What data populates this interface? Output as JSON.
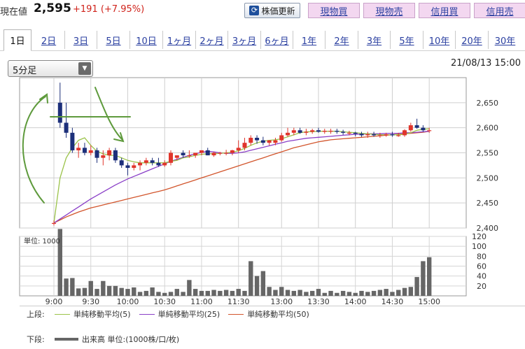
{
  "header": {
    "price_label": "現在値",
    "price_value": "2,595",
    "price_change": "+191 (+7.95%)",
    "update_button": "株価更新",
    "trade_buttons": [
      "現物買",
      "現物売",
      "信用買",
      "信用売"
    ]
  },
  "tabs": [
    "1日",
    "2日",
    "3日",
    "5日",
    "10日",
    "1ヶ月",
    "2ヶ月",
    "3ヶ月",
    "6ヶ月",
    "1年",
    "2年",
    "3年",
    "5年",
    "10年",
    "20年",
    "30年"
  ],
  "active_tab": "1日",
  "interval_select": {
    "value": "5分足"
  },
  "datetime": "21/08/13 15:00",
  "legend": {
    "upper_label": "上段:",
    "lower_label": "下段:",
    "ma5": "単純移動平均(5)",
    "ma25": "単純移動平均(25)",
    "ma50": "単純移動平均(50)",
    "volume": "出来高 単位:(1000株/口/枚)"
  },
  "colors": {
    "up": "#e0352b",
    "down": "#1c2f7a",
    "ma5": "#9bc34a",
    "ma25": "#8a3fc7",
    "ma50": "#d2552c",
    "volume": "#666666",
    "annotation": "#5e9a3c"
  },
  "chart_data": [
    {
      "type": "candlestick",
      "interval": "5分足",
      "x": [
        "9:00",
        "9:05",
        "9:10",
        "9:15",
        "9:20",
        "9:25",
        "9:30",
        "9:35",
        "9:40",
        "9:45",
        "9:50",
        "9:55",
        "10:00",
        "10:05",
        "10:10",
        "10:15",
        "10:20",
        "10:25",
        "10:30",
        "10:35",
        "10:40",
        "10:45",
        "10:50",
        "10:55",
        "11:00",
        "11:05",
        "11:10",
        "11:15",
        "11:20",
        "11:25",
        "11:30",
        "12:30",
        "12:35",
        "12:40",
        "12:45",
        "12:50",
        "12:55",
        "13:00",
        "13:05",
        "13:10",
        "13:15",
        "13:20",
        "13:25",
        "13:30",
        "13:35",
        "13:40",
        "13:45",
        "13:50",
        "13:55",
        "14:00",
        "14:05",
        "14:10",
        "14:15",
        "14:20",
        "14:25",
        "14:30",
        "14:35",
        "14:40",
        "14:45",
        "14:50",
        "14:55",
        "15:00"
      ],
      "open": [
        2410,
        2650,
        2610,
        2590,
        2555,
        2560,
        2550,
        2555,
        2540,
        2545,
        2555,
        2535,
        2525,
        2520,
        2525,
        2530,
        2535,
        2530,
        2525,
        2530,
        2540,
        2550,
        2545,
        2545,
        2550,
        2555,
        2545,
        2550,
        2550,
        2550,
        2555,
        2560,
        2570,
        2580,
        2575,
        2570,
        2570,
        2575,
        2585,
        2590,
        2595,
        2590,
        2592,
        2595,
        2592,
        2594,
        2594,
        2592,
        2590,
        2590,
        2588,
        2585,
        2587,
        2585,
        2585,
        2587,
        2585,
        2585,
        2595,
        2605,
        2600,
        2595
      ],
      "high": [
        2415,
        2690,
        2650,
        2600,
        2570,
        2570,
        2565,
        2560,
        2555,
        2560,
        2560,
        2540,
        2530,
        2530,
        2535,
        2540,
        2540,
        2540,
        2535,
        2555,
        2545,
        2555,
        2555,
        2550,
        2555,
        2560,
        2552,
        2552,
        2556,
        2556,
        2575,
        2580,
        2585,
        2585,
        2582,
        2575,
        2580,
        2590,
        2600,
        2600,
        2600,
        2598,
        2598,
        2600,
        2598,
        2598,
        2598,
        2596,
        2594,
        2592,
        2592,
        2592,
        2592,
        2590,
        2590,
        2592,
        2590,
        2597,
        2610,
        2618,
        2605,
        2600
      ],
      "low": [
        2405,
        2600,
        2580,
        2550,
        2540,
        2545,
        2545,
        2530,
        2525,
        2535,
        2530,
        2520,
        2505,
        2515,
        2515,
        2525,
        2525,
        2522,
        2522,
        2525,
        2535,
        2540,
        2540,
        2540,
        2545,
        2545,
        2542,
        2545,
        2545,
        2545,
        2550,
        2555,
        2565,
        2568,
        2565,
        2565,
        2565,
        2572,
        2582,
        2585,
        2588,
        2585,
        2588,
        2590,
        2588,
        2588,
        2588,
        2586,
        2585,
        2583,
        2582,
        2580,
        2582,
        2580,
        2582,
        2582,
        2582,
        2582,
        2592,
        2598,
        2592,
        2590
      ],
      "close": [
        2410,
        2610,
        2590,
        2555,
        2560,
        2550,
        2555,
        2540,
        2545,
        2555,
        2535,
        2525,
        2520,
        2525,
        2530,
        2535,
        2530,
        2525,
        2530,
        2550,
        2545,
        2545,
        2545,
        2550,
        2555,
        2545,
        2550,
        2550,
        2550,
        2555,
        2560,
        2570,
        2580,
        2575,
        2570,
        2575,
        2575,
        2585,
        2590,
        2595,
        2590,
        2592,
        2595,
        2592,
        2594,
        2594,
        2592,
        2590,
        2590,
        2588,
        2585,
        2587,
        2585,
        2585,
        2587,
        2585,
        2585,
        2595,
        2605,
        2600,
        2595,
        2595
      ],
      "ma5": [
        2410,
        2500,
        2540,
        2560,
        2575,
        2580,
        2565,
        2553,
        2548,
        2545,
        2545,
        2540,
        2535,
        2532,
        2530,
        2530,
        2530,
        2530,
        2530,
        2533,
        2535,
        2540,
        2542,
        2545,
        2547,
        2548,
        2548,
        2549,
        2550,
        2551,
        2554,
        2559,
        2565,
        2570,
        2573,
        2575,
        2576,
        2578,
        2582,
        2586,
        2590,
        2592,
        2592,
        2593,
        2593,
        2593,
        2593,
        2592,
        2591,
        2590,
        2589,
        2588,
        2587,
        2586,
        2586,
        2586,
        2586,
        2587,
        2590,
        2595,
        2597,
        2598
      ],
      "ma25": [
        2410,
        2418,
        2426,
        2434,
        2442,
        2450,
        2458,
        2465,
        2472,
        2479,
        2486,
        2492,
        2498,
        2503,
        2508,
        2513,
        2518,
        2523,
        2528,
        2533,
        2537,
        2541,
        2545,
        2548,
        2551,
        2553,
        2552,
        2550,
        2549,
        2549,
        2550,
        2552,
        2555,
        2558,
        2561,
        2564,
        2567,
        2570,
        2573,
        2575,
        2577,
        2579,
        2580,
        2581,
        2582,
        2583,
        2584,
        2585,
        2586,
        2587,
        2587,
        2588,
        2588,
        2588,
        2589,
        2589,
        2589,
        2590,
        2590,
        2591,
        2592,
        2593
      ],
      "ma50": [
        2410,
        2416,
        2422,
        2427,
        2432,
        2436,
        2440,
        2443,
        2446,
        2449,
        2452,
        2455,
        2458,
        2461,
        2464,
        2467,
        2470,
        2473,
        2476,
        2480,
        2484,
        2488,
        2492,
        2496,
        2500,
        2504,
        2508,
        2512,
        2516,
        2520,
        2524,
        2528,
        2532,
        2536,
        2540,
        2544,
        2548,
        2552,
        2556,
        2560,
        2563,
        2566,
        2569,
        2572,
        2574,
        2576,
        2577,
        2578,
        2579,
        2580,
        2581,
        2582,
        2583,
        2584,
        2585,
        2586,
        2587,
        2588,
        2589,
        2590,
        2591,
        2593
      ],
      "ylim": [
        2400,
        2700
      ],
      "y_ticks": [
        "2,400",
        "2,450",
        "2,500",
        "2,550",
        "2,600",
        "2,650"
      ],
      "x_ticks": [
        "9:00",
        "9:30",
        "10:00",
        "10:30",
        "11:00",
        "11:30",
        "13:00",
        "13:30",
        "14:00",
        "14:30",
        "15:00"
      ],
      "grid": true
    },
    {
      "type": "bar",
      "title": "単位: 1000",
      "volume": [
        0,
        135,
        35,
        36,
        15,
        16,
        30,
        14,
        30,
        20,
        20,
        16,
        14,
        17,
        8,
        10,
        17,
        8,
        6,
        8,
        14,
        8,
        32,
        14,
        10,
        10,
        12,
        10,
        12,
        10,
        14,
        10,
        70,
        40,
        50,
        18,
        12,
        18,
        12,
        10,
        12,
        8,
        10,
        14,
        6,
        10,
        6,
        10,
        8,
        6,
        10,
        8,
        10,
        12,
        14,
        8,
        12,
        16,
        18,
        38,
        70,
        78
      ],
      "ylim": [
        0,
        120
      ],
      "y_ticks": [
        "20",
        "40",
        "60",
        "80",
        "100",
        "120"
      ]
    }
  ]
}
